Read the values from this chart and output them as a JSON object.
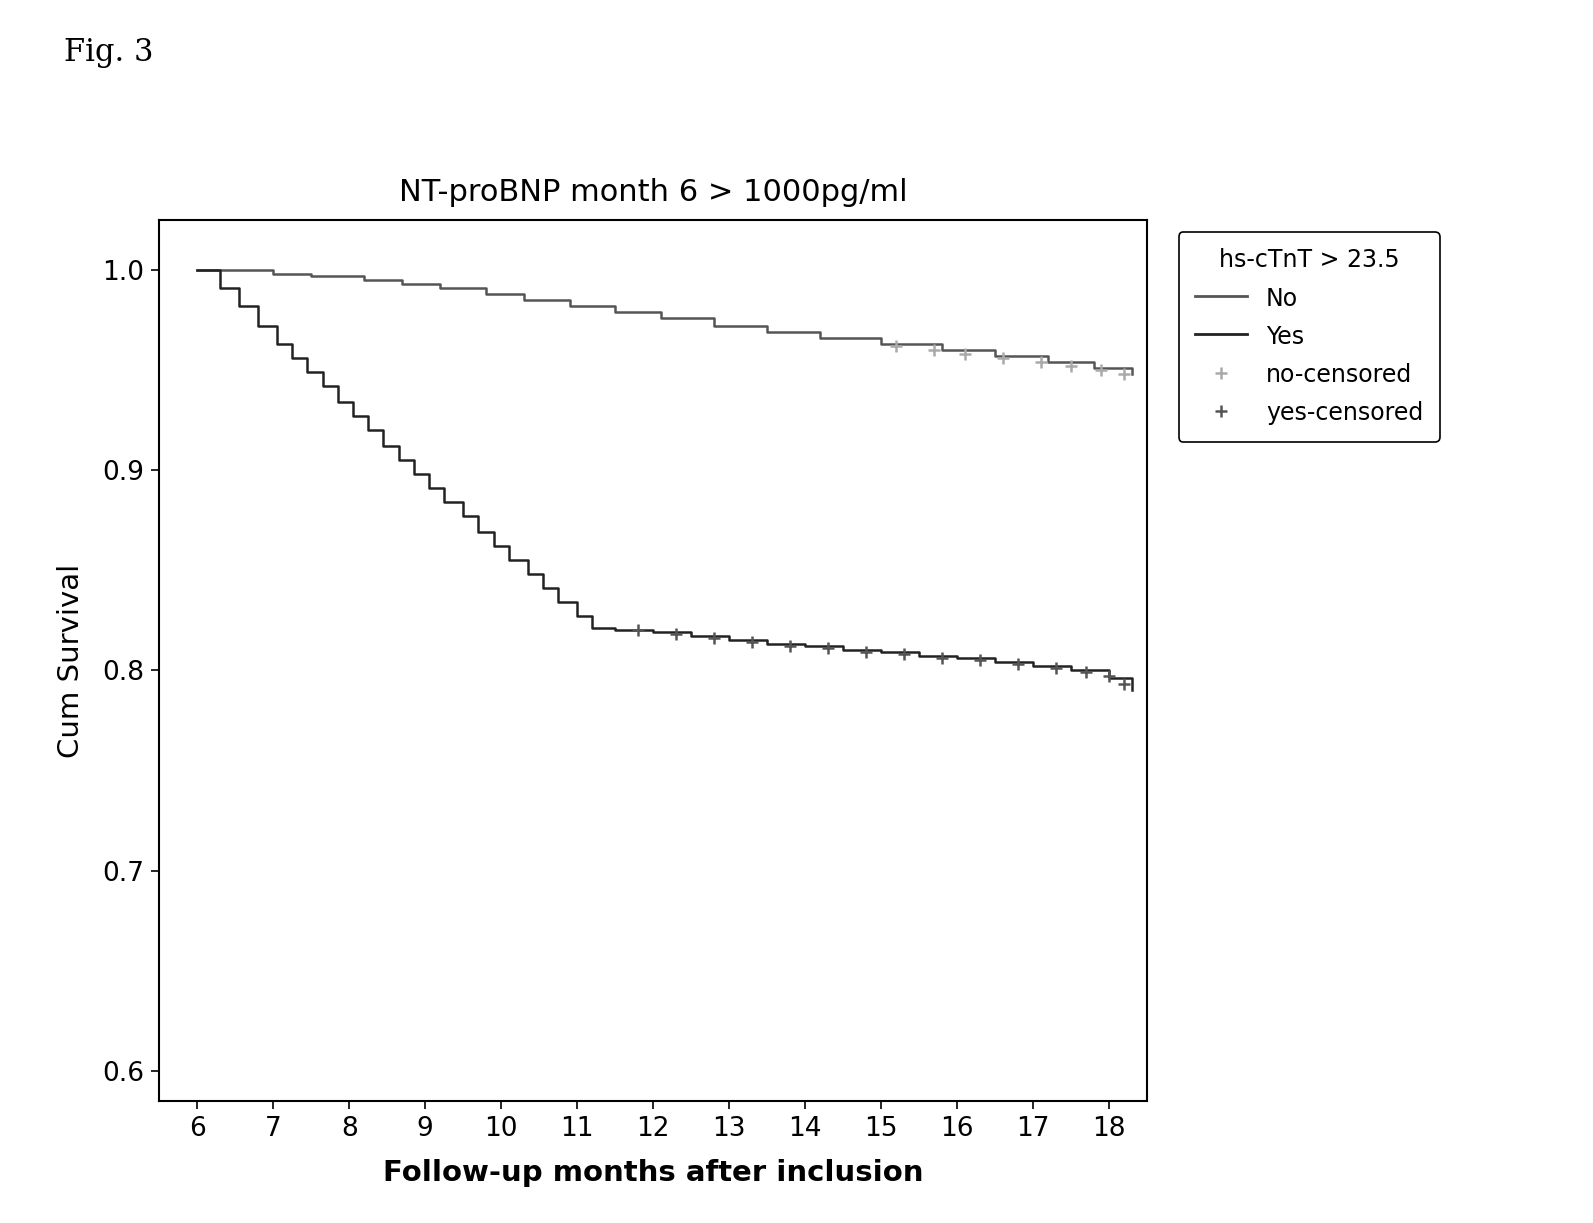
{
  "title": "NT-proBNP month 6 > 1000pg/ml",
  "xlabel": "Follow-up months after inclusion",
  "ylabel": "Cum Survival",
  "fig_label": "Fig. 3",
  "legend_title": "hs-cTnT > 23.5",
  "xlim": [
    5.5,
    18.5
  ],
  "ylim": [
    0.585,
    1.025
  ],
  "xticks": [
    6,
    7,
    8,
    9,
    10,
    11,
    12,
    13,
    14,
    15,
    16,
    17,
    18
  ],
  "yticks": [
    0.6,
    0.7,
    0.8,
    0.9,
    1.0
  ],
  "color_no": "#555555",
  "color_yes": "#222222",
  "color_no_cens": "#888888",
  "color_yes_cens": "#444444",
  "no_t": [
    6.0,
    6.7,
    7.0,
    7.5,
    8.2,
    8.7,
    9.2,
    9.8,
    10.3,
    10.9,
    11.5,
    12.1,
    12.8,
    13.5,
    14.2,
    15.0,
    15.8,
    16.5,
    17.2,
    17.8,
    18.3
  ],
  "no_s": [
    1.0,
    1.0,
    0.998,
    0.997,
    0.995,
    0.993,
    0.991,
    0.988,
    0.985,
    0.982,
    0.979,
    0.976,
    0.972,
    0.969,
    0.966,
    0.963,
    0.96,
    0.957,
    0.954,
    0.951,
    0.948
  ],
  "yes_t": [
    6.0,
    6.3,
    6.55,
    6.8,
    7.05,
    7.25,
    7.45,
    7.65,
    7.85,
    8.05,
    8.25,
    8.45,
    8.65,
    8.85,
    9.05,
    9.25,
    9.5,
    9.7,
    9.9,
    10.1,
    10.35,
    10.55,
    10.75,
    11.0,
    11.2,
    11.5,
    12.0,
    12.5,
    13.0,
    13.5,
    14.0,
    14.5,
    15.0,
    15.5,
    16.0,
    16.5,
    17.0,
    17.5,
    18.0,
    18.3
  ],
  "yes_s": [
    1.0,
    0.991,
    0.982,
    0.972,
    0.963,
    0.956,
    0.949,
    0.942,
    0.934,
    0.927,
    0.92,
    0.912,
    0.905,
    0.898,
    0.891,
    0.884,
    0.877,
    0.869,
    0.862,
    0.855,
    0.848,
    0.841,
    0.834,
    0.827,
    0.821,
    0.82,
    0.819,
    0.817,
    0.815,
    0.813,
    0.812,
    0.81,
    0.809,
    0.807,
    0.806,
    0.804,
    0.802,
    0.8,
    0.796,
    0.79
  ],
  "no_cens_x": [
    15.2,
    15.7,
    16.1,
    16.6,
    17.1,
    17.5,
    17.9,
    18.2
  ],
  "no_cens_y": [
    0.962,
    0.96,
    0.958,
    0.956,
    0.954,
    0.952,
    0.95,
    0.948
  ],
  "yes_cens_x": [
    11.8,
    12.3,
    12.8,
    13.3,
    13.8,
    14.3,
    14.8,
    15.3,
    15.8,
    16.3,
    16.8,
    17.3,
    17.7,
    18.0,
    18.2
  ],
  "yes_cens_y": [
    0.82,
    0.818,
    0.816,
    0.814,
    0.812,
    0.811,
    0.809,
    0.808,
    0.806,
    0.805,
    0.803,
    0.801,
    0.799,
    0.797,
    0.793
  ]
}
